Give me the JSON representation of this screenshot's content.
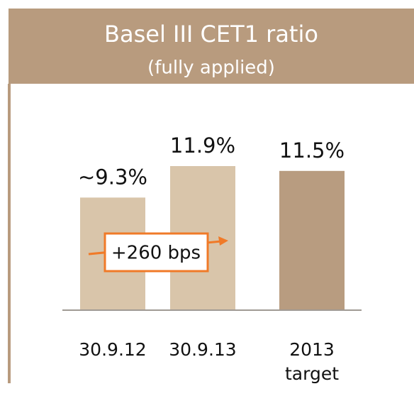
{
  "chart_data": {
    "type": "bar",
    "title": "Basel III CET1 ratio",
    "subtitle": "(fully applied)",
    "categories": [
      "30.9.12",
      "30.9.13",
      "2013 target"
    ],
    "values": [
      9.3,
      11.9,
      11.5
    ],
    "value_labels": [
      "~9.3%",
      "11.9%",
      "11.5%"
    ],
    "colors": [
      "#d9c5aa",
      "#d9c5aa",
      "#b89c80"
    ],
    "annotation": "+260 bps"
  }
}
